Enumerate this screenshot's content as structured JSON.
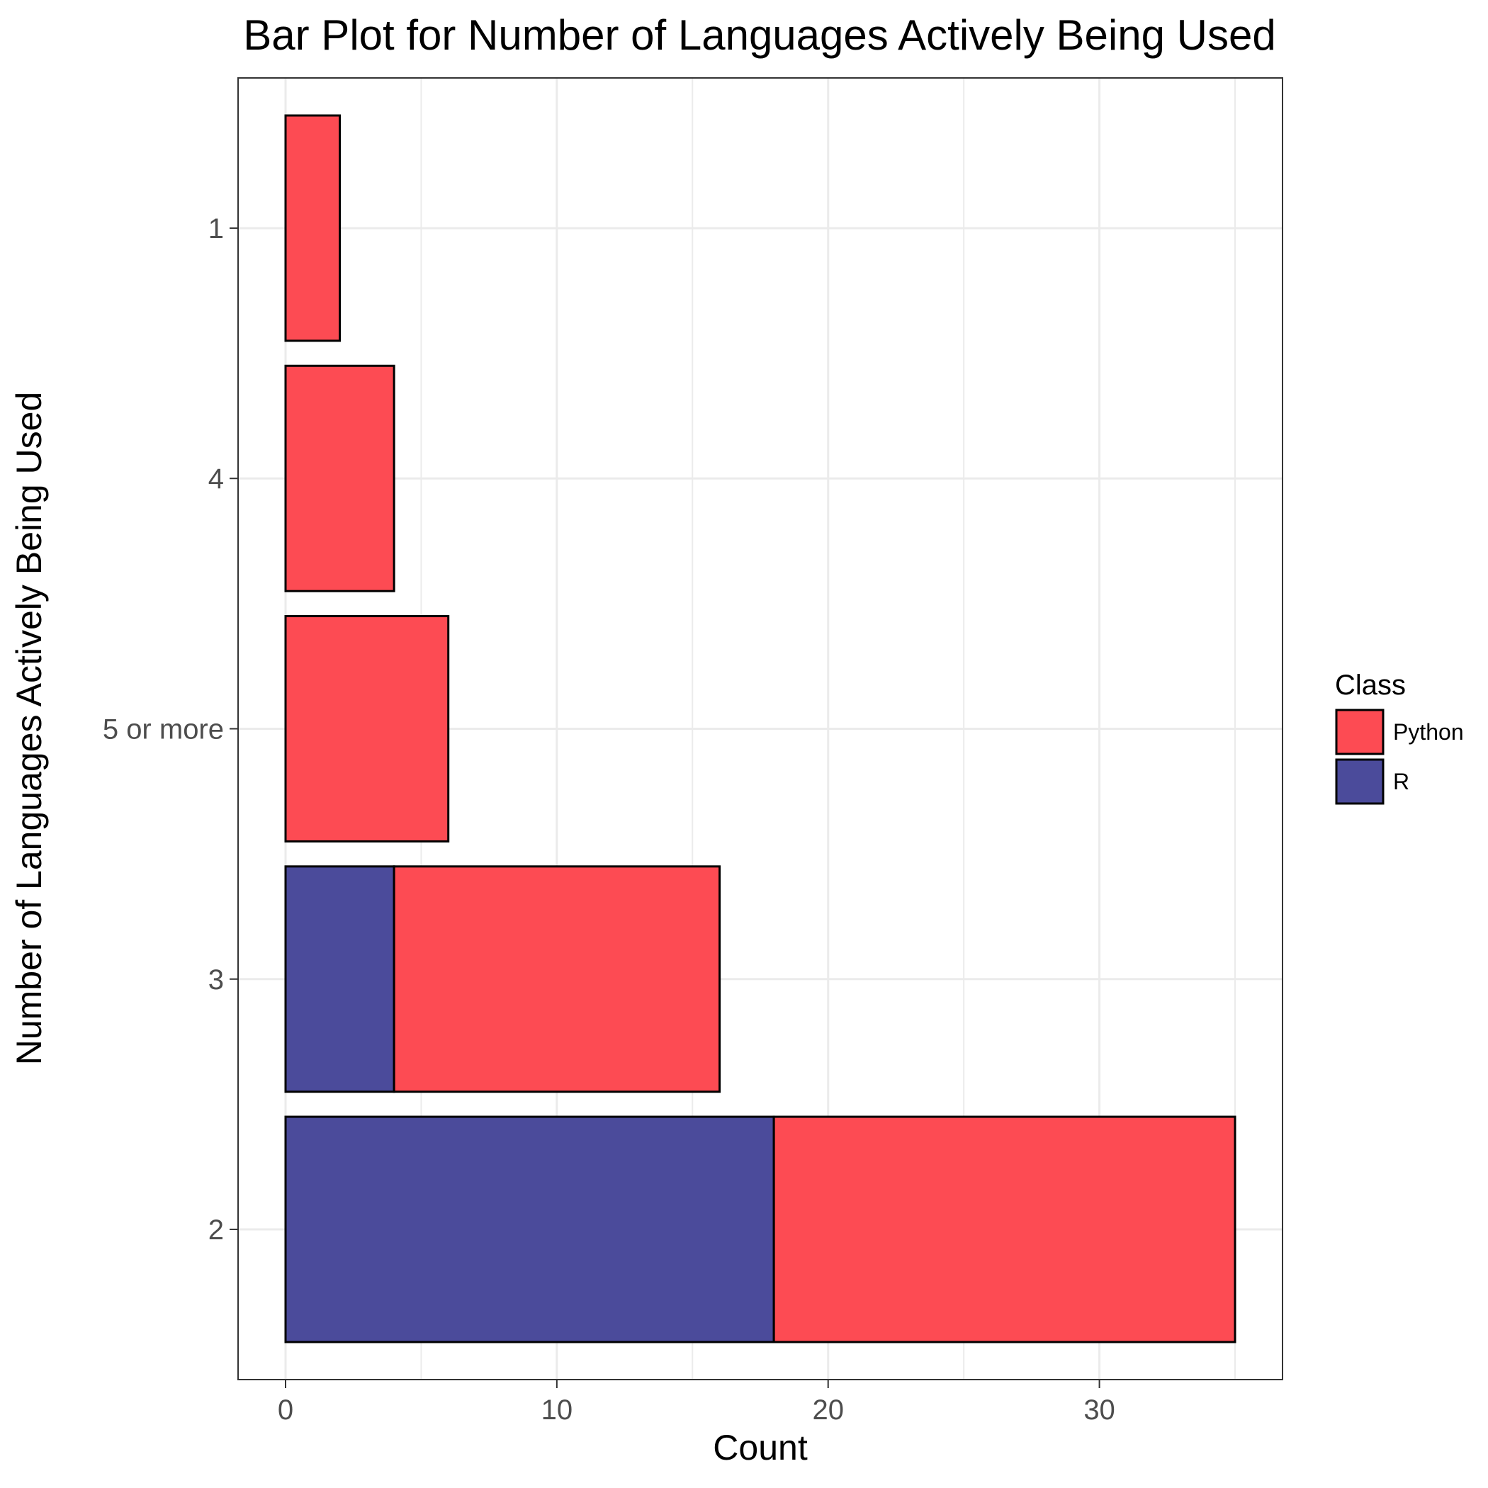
{
  "chart_data": {
    "type": "bar",
    "orientation": "horizontal",
    "stacked": true,
    "title": "Bar Plot for Number of Languages Actively Being Used",
    "xlabel": "Count",
    "ylabel": "Number of Languages Actively Being Used",
    "categories": [
      "2",
      "3",
      "5 or more",
      "4",
      "1"
    ],
    "series": [
      {
        "name": "R",
        "color": "#4b4b9b",
        "values": [
          18,
          4,
          0,
          0,
          0
        ]
      },
      {
        "name": "Python",
        "color": "#fd4b53",
        "values": [
          17,
          12,
          6,
          4,
          2
        ]
      }
    ],
    "xlim": [
      -1.75,
      36.75
    ],
    "xticks": [
      0,
      10,
      20,
      30
    ],
    "grid": true,
    "legend": {
      "title": "Class",
      "position": "right",
      "entries": [
        "Python",
        "R"
      ]
    }
  }
}
